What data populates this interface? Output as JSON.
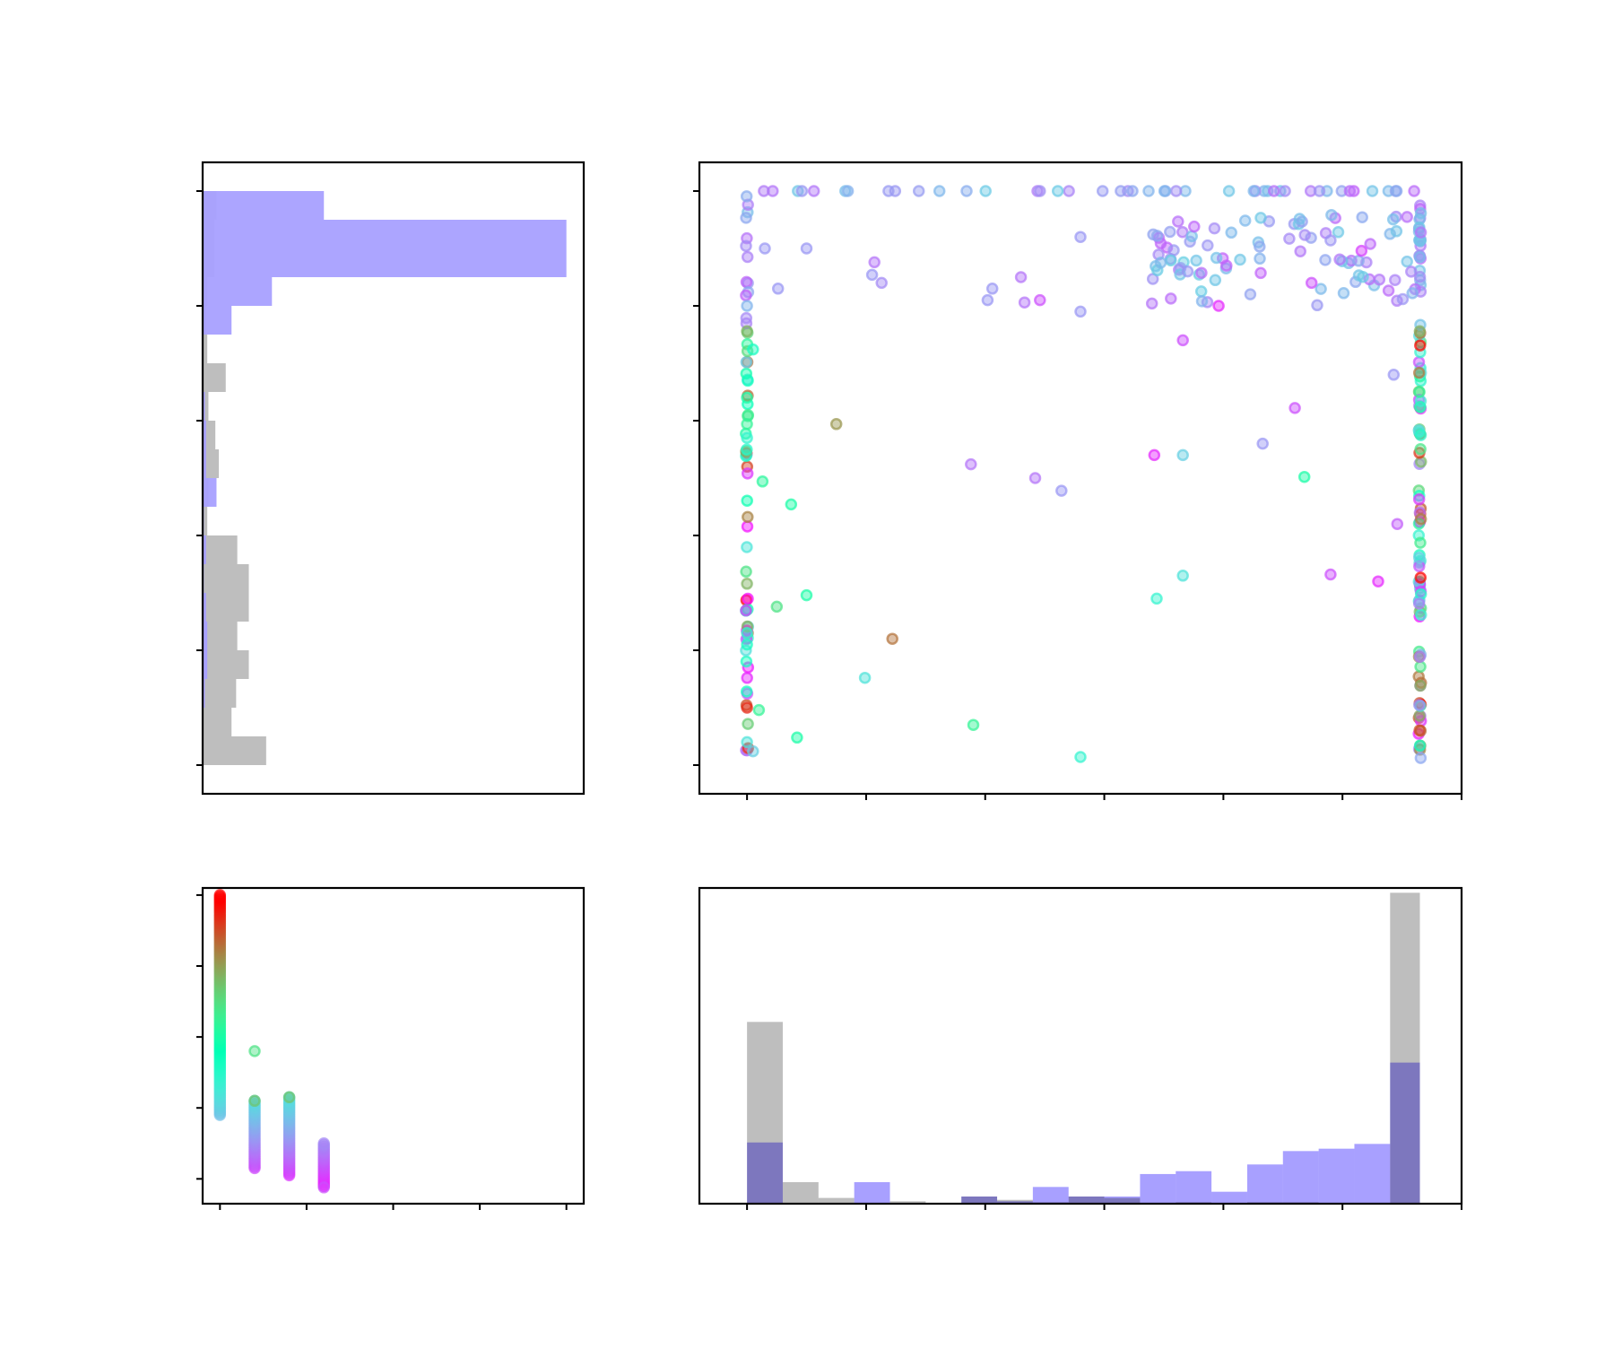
{
  "chart_data": [
    {
      "type": "bar",
      "orientation": "horizontal",
      "panel": "top-left",
      "ylim": [
        -0.25,
        5.25
      ],
      "xlim": [
        0,
        330
      ],
      "bin_edges": [
        0,
        0.25,
        0.5,
        0.75,
        1.0,
        1.25,
        1.5,
        1.75,
        2.0,
        2.25,
        2.5,
        2.75,
        3.0,
        3.25,
        3.5,
        3.75,
        4.0,
        4.25,
        4.75,
        5.0
      ],
      "series": [
        {
          "color": "#bebebe",
          "values": [
            55,
            25,
            29,
            40,
            30,
            40,
            40,
            30,
            4,
            5,
            14,
            11,
            5,
            20,
            4,
            3,
            4,
            10,
            12,
            225
          ]
        },
        {
          "color": "#a8a0ff",
          "values": [
            0,
            0,
            2,
            4,
            4,
            3,
            1,
            3,
            1,
            12,
            3,
            3,
            2,
            0,
            0,
            25,
            60,
            315,
            105,
            0
          ]
        }
      ]
    },
    {
      "type": "scatter",
      "panel": "top-right",
      "xlim": [
        -0.4,
        6.0
      ],
      "ylim": [
        -0.25,
        5.25
      ],
      "colormap": "rainbow",
      "point_groups": [
        {
          "x": 0.0,
          "y_from": 0.0,
          "y_to": 5.0,
          "count": 60
        },
        {
          "x": 5.65,
          "y_from": 0.05,
          "y_to": 5.0,
          "count": 110
        },
        {
          "x_from": 0.0,
          "x_to": 5.65,
          "y": 5.0,
          "count": 45
        },
        {
          "x_from": 3.4,
          "x_to": 5.65,
          "y_from": 4.0,
          "y_to": 4.8,
          "count": 90
        }
      ],
      "points": [
        [
          0.0,
          4.0,
          0.25
        ],
        [
          0.0,
          3.78,
          0.75
        ],
        [
          0.05,
          3.62,
          0.45
        ],
        [
          0.0,
          3.2,
          0.55
        ],
        [
          0.0,
          2.97,
          0.6
        ],
        [
          0.0,
          2.85,
          0.4
        ],
        [
          0.13,
          2.47,
          0.58
        ],
        [
          0.37,
          2.27,
          0.55
        ],
        [
          0.75,
          2.97,
          0.8
        ],
        [
          0.0,
          1.58,
          0.75
        ],
        [
          0.5,
          1.48,
          0.55
        ],
        [
          0.25,
          1.38,
          0.65
        ],
        [
          0.0,
          1.15,
          0.4
        ],
        [
          0.0,
          1.05,
          0.45
        ],
        [
          0.1,
          0.48,
          0.6
        ],
        [
          0.0,
          0.5,
          0.95
        ],
        [
          0.42,
          0.24,
          0.55
        ],
        [
          0.0,
          0.2,
          0.35
        ],
        [
          0.05,
          0.12,
          0.3
        ],
        [
          1.22,
          1.1,
          0.85
        ],
        [
          0.99,
          0.76,
          0.35
        ],
        [
          1.9,
          0.35,
          0.6
        ],
        [
          2.8,
          0.07,
          0.4
        ],
        [
          1.88,
          2.62,
          0.15
        ],
        [
          2.42,
          2.5,
          0.15
        ],
        [
          2.64,
          2.39,
          0.2
        ],
        [
          2.33,
          4.03,
          0.15
        ],
        [
          2.8,
          3.95,
          0.2
        ],
        [
          3.42,
          2.7,
          0.05
        ],
        [
          3.66,
          2.7,
          0.3
        ],
        [
          3.66,
          1.65,
          0.35
        ],
        [
          3.44,
          1.45,
          0.4
        ],
        [
          4.33,
          2.8,
          0.2
        ],
        [
          4.6,
          3.11,
          0.1
        ],
        [
          4.68,
          2.51,
          0.55
        ],
        [
          4.9,
          1.66,
          0.1
        ],
        [
          5.3,
          1.6,
          0.05
        ],
        [
          5.43,
          3.4,
          0.2
        ],
        [
          5.46,
          2.1,
          0.12
        ],
        [
          5.16,
          4.48,
          0.08
        ],
        [
          3.66,
          3.7,
          0.1
        ],
        [
          3.4,
          4.02,
          0.15
        ],
        [
          2.3,
          4.25,
          0.15
        ],
        [
          2.8,
          4.6,
          0.2
        ],
        [
          1.05,
          4.27,
          0.2
        ],
        [
          1.07,
          4.38,
          0.15
        ],
        [
          0.5,
          4.5,
          0.2
        ],
        [
          0.15,
          4.5,
          0.2
        ],
        [
          0.26,
          4.15,
          0.2
        ],
        [
          1.13,
          4.2,
          0.18
        ],
        [
          2.06,
          4.15,
          0.2
        ],
        [
          2.02,
          4.05,
          0.2
        ],
        [
          2.46,
          4.05,
          0.1
        ],
        [
          3.82,
          4.04,
          0.25
        ],
        [
          3.7,
          4.3,
          0.2
        ],
        [
          4.74,
          4.2,
          0.1
        ],
        [
          3.96,
          4.0,
          0.05
        ]
      ]
    },
    {
      "type": "scatter",
      "panel": "bottom-left",
      "xlim": [
        -0.2,
        4.2
      ],
      "ylim": [
        -0.35,
        4.1
      ],
      "colormap": "rainbow",
      "columns": [
        {
          "x": 0.0,
          "y_from": 0.9,
          "y_to": 4.0
        },
        {
          "x": 0.4,
          "y_from": 0.15,
          "y_to": 1.1
        },
        {
          "x": 0.8,
          "y_from": 0.05,
          "y_to": 1.15
        },
        {
          "x": 1.2,
          "y_from": -0.1,
          "y_to": 0.5
        }
      ],
      "points": [
        [
          0.4,
          1.8,
          0.65
        ],
        [
          0.8,
          1.15,
          0.72
        ],
        [
          0.4,
          1.1,
          0.72
        ],
        [
          1.2,
          -0.12,
          0.1
        ]
      ]
    },
    {
      "type": "bar",
      "orientation": "vertical",
      "panel": "bottom-right",
      "xlim": [
        -0.4,
        6.0
      ],
      "ylim": [
        0,
        660
      ],
      "bin_edges": [
        0.0,
        0.3,
        0.6,
        0.9,
        1.2,
        1.5,
        1.8,
        2.1,
        2.4,
        2.7,
        3.0,
        3.3,
        3.6,
        3.9,
        4.2,
        4.5,
        4.8,
        5.1,
        5.4,
        5.65
      ],
      "series": [
        {
          "color": "#bebebe",
          "values": [
            380,
            45,
            12,
            0,
            5,
            0,
            15,
            8,
            3,
            15,
            12,
            2,
            3,
            0,
            3,
            3,
            2,
            2,
            650
          ]
        },
        {
          "color": "#a8a0ff",
          "values": [
            128,
            0,
            0,
            45,
            0,
            0,
            15,
            5,
            35,
            15,
            15,
            62,
            68,
            25,
            82,
            110,
            115,
            125,
            295
          ]
        }
      ]
    }
  ]
}
